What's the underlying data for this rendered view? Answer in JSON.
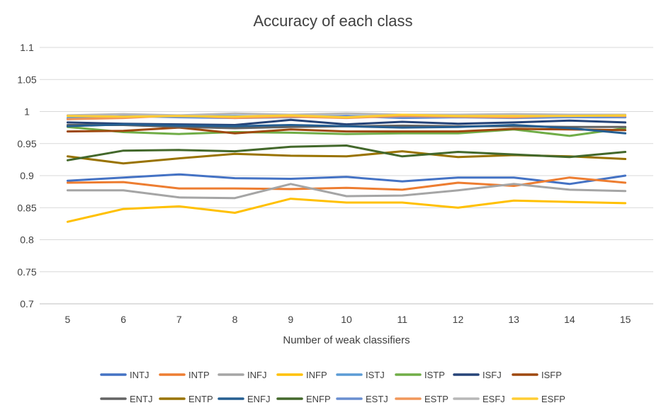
{
  "chart_data": {
    "type": "line",
    "title": "Accuracy of each class",
    "xlabel": "Number of weak classifiers",
    "ylabel": "",
    "x": [
      5,
      6,
      7,
      8,
      9,
      10,
      11,
      12,
      13,
      14,
      15
    ],
    "ylim": [
      0.7,
      1.1
    ],
    "yticks": [
      "0.7",
      "0.75",
      "0.8",
      "0.85",
      "0.9",
      "0.95",
      "1",
      "1.05",
      "1.1"
    ],
    "ytick_values": [
      0.7,
      0.75,
      0.8,
      0.85,
      0.9,
      0.95,
      1.0,
      1.05,
      1.1
    ],
    "grid": true,
    "legend_position": "bottom",
    "series": [
      {
        "name": "INTJ",
        "color": "#4472C4",
        "values": [
          0.892,
          0.897,
          0.902,
          0.896,
          0.895,
          0.898,
          0.891,
          0.897,
          0.897,
          0.887,
          0.9
        ]
      },
      {
        "name": "INTP",
        "color": "#ED7D31",
        "values": [
          0.889,
          0.89,
          0.88,
          0.88,
          0.879,
          0.881,
          0.878,
          0.889,
          0.884,
          0.897,
          0.889
        ]
      },
      {
        "name": "INFJ",
        "color": "#A5A5A5",
        "values": [
          0.877,
          0.877,
          0.866,
          0.865,
          0.887,
          0.868,
          0.869,
          0.877,
          0.887,
          0.878,
          0.876
        ]
      },
      {
        "name": "INFP",
        "color": "#FFC000",
        "values": [
          0.828,
          0.848,
          0.852,
          0.842,
          0.864,
          0.858,
          0.858,
          0.85,
          0.861,
          0.859,
          0.857
        ]
      },
      {
        "name": "ISTJ",
        "color": "#5B9BD5",
        "values": [
          0.99,
          0.992,
          0.993,
          0.993,
          0.992,
          0.993,
          0.992,
          0.993,
          0.992,
          0.992,
          0.991
        ]
      },
      {
        "name": "ISTP",
        "color": "#70AD47",
        "values": [
          0.976,
          0.968,
          0.965,
          0.968,
          0.967,
          0.965,
          0.966,
          0.966,
          0.972,
          0.962,
          0.974
        ]
      },
      {
        "name": "ISFJ",
        "color": "#264478",
        "values": [
          0.983,
          0.981,
          0.98,
          0.979,
          0.987,
          0.98,
          0.984,
          0.981,
          0.983,
          0.986,
          0.983
        ]
      },
      {
        "name": "ISFP",
        "color": "#9E480E",
        "values": [
          0.969,
          0.97,
          0.975,
          0.966,
          0.972,
          0.969,
          0.969,
          0.969,
          0.973,
          0.972,
          0.971
        ]
      },
      {
        "name": "ENTJ",
        "color": "#636363",
        "values": [
          0.979,
          0.979,
          0.976,
          0.974,
          0.976,
          0.977,
          0.978,
          0.977,
          0.977,
          0.976,
          0.976
        ]
      },
      {
        "name": "ENTP",
        "color": "#997300",
        "values": [
          0.93,
          0.919,
          0.927,
          0.934,
          0.931,
          0.93,
          0.938,
          0.929,
          0.932,
          0.93,
          0.926
        ]
      },
      {
        "name": "ENFJ",
        "color": "#255E91",
        "values": [
          0.977,
          0.98,
          0.978,
          0.977,
          0.979,
          0.977,
          0.975,
          0.976,
          0.979,
          0.974,
          0.966
        ]
      },
      {
        "name": "ENFP",
        "color": "#43682B",
        "values": [
          0.924,
          0.939,
          0.94,
          0.938,
          0.945,
          0.947,
          0.93,
          0.937,
          0.933,
          0.929,
          0.937
        ]
      },
      {
        "name": "ESTJ",
        "color": "#698ED0",
        "values": [
          0.988,
          0.993,
          0.991,
          0.99,
          0.991,
          0.993,
          0.99,
          0.991,
          0.99,
          0.991,
          0.991
        ]
      },
      {
        "name": "ESTP",
        "color": "#F1975A",
        "values": [
          0.988,
          0.99,
          0.994,
          0.99,
          0.992,
          0.99,
          0.993,
          0.992,
          0.991,
          0.994,
          0.993
        ]
      },
      {
        "name": "ESFJ",
        "color": "#B7B7B7",
        "values": [
          0.994,
          0.996,
          0.994,
          0.997,
          0.995,
          0.997,
          0.995,
          0.995,
          0.996,
          0.995,
          0.995
        ]
      },
      {
        "name": "ESFP",
        "color": "#FFCD33",
        "values": [
          0.993,
          0.992,
          0.993,
          0.992,
          0.994,
          0.991,
          0.995,
          0.993,
          0.993,
          0.993,
          0.994
        ]
      }
    ]
  }
}
